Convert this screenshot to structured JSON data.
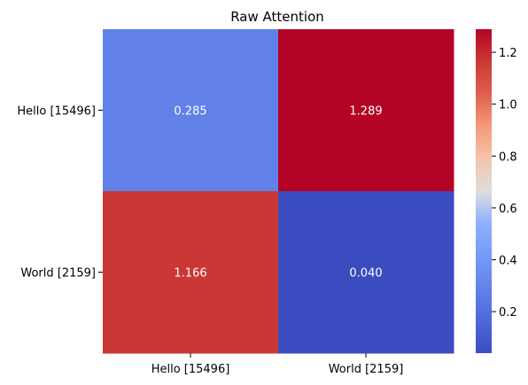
{
  "chart_data": {
    "type": "heatmap",
    "title": "Raw Attention",
    "x_categories": [
      "Hello [15496]",
      "World [2159]"
    ],
    "y_categories": [
      "Hello [15496]",
      "World [2159]"
    ],
    "values": [
      [
        0.285,
        1.289
      ],
      [
        1.166,
        0.04
      ]
    ],
    "value_labels": [
      [
        "0.285",
        "1.289"
      ],
      [
        "1.166",
        "0.040"
      ]
    ],
    "colormap": "coolwarm",
    "colorbar": {
      "vmin": 0.04,
      "vmax": 1.289,
      "ticks": [
        0.2,
        0.4,
        0.6,
        0.8,
        1.0,
        1.2
      ],
      "tick_labels": [
        "0.2",
        "0.4",
        "0.6",
        "0.8",
        "1.0",
        "1.2"
      ]
    },
    "annotation_color": "#ffffff"
  }
}
